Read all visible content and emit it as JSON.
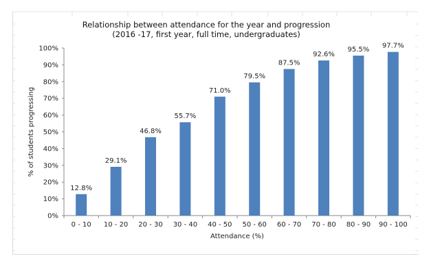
{
  "chart_data": {
    "type": "bar",
    "title": "Relationship between attendance for the year and progression",
    "subtitle": "(2016 -17, first year, full time, undergraduates)",
    "xlabel": "Attendance (%)",
    "ylabel": "% of students progressing",
    "categories": [
      "0 - 10",
      "10 - 20",
      "20 - 30",
      "30 - 40",
      "40 - 50",
      "50 - 60",
      "60 - 70",
      "70 - 80",
      "80 - 90",
      "90 - 100"
    ],
    "values": [
      12.8,
      29.1,
      46.8,
      55.7,
      71.0,
      79.5,
      87.5,
      92.6,
      95.5,
      97.7
    ],
    "data_labels": [
      "12.8%",
      "29.1%",
      "46.8%",
      "55.7%",
      "71.0%",
      "79.5%",
      "87.5%",
      "92.6%",
      "95.5%",
      "97.7%"
    ],
    "yticks": [
      "0%",
      "10%",
      "20%",
      "30%",
      "40%",
      "50%",
      "60%",
      "70%",
      "80%",
      "90%",
      "100%"
    ],
    "ylim": [
      0,
      100
    ],
    "grid": false,
    "legend": "none",
    "bar_color": "#4f81bd"
  }
}
